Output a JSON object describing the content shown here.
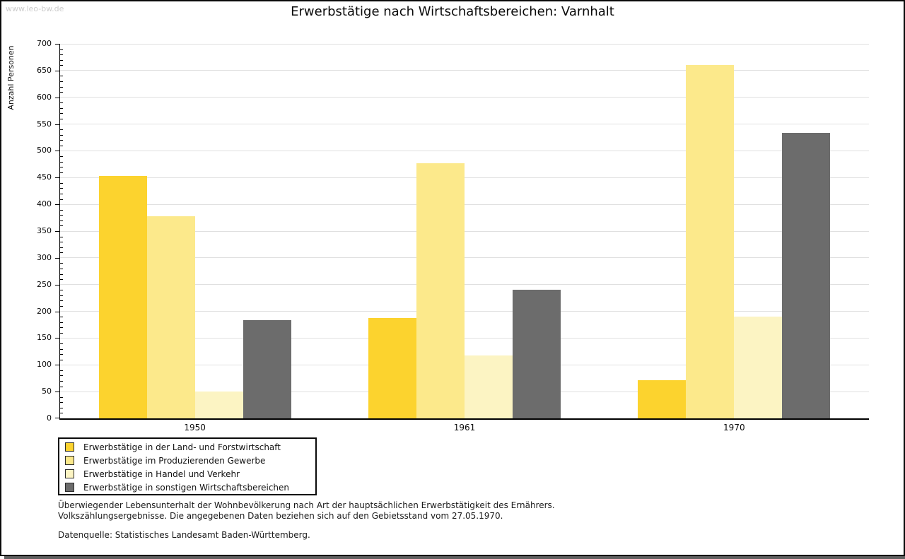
{
  "watermark": "www.leo-bw.de",
  "title": "Erwerbstätige nach Wirtschaftsbereichen: Varnhalt",
  "chart_data": {
    "type": "bar",
    "title": "Erwerbstätige nach Wirtschaftsbereichen: Varnhalt",
    "xlabel": "",
    "ylabel": "Anzahl Personen",
    "ylim": [
      0,
      700
    ],
    "ytick_step": 50,
    "minor_tick_step": 10,
    "grid": "horizontal",
    "legend_position": "bottom-left",
    "categories": [
      "1950",
      "1961",
      "1970"
    ],
    "series": [
      {
        "name": "Erwerbstätige in der Land- und Forstwirtschaft",
        "color": "#FCD32E",
        "values": [
          453,
          188,
          72
        ]
      },
      {
        "name": "Erwerbstätige im Produzierenden Gewerbe",
        "color": "#FCE98B",
        "values": [
          378,
          477,
          660
        ]
      },
      {
        "name": "Erwerbstätige in Handel und Verkehr",
        "color": "#FCF4C3",
        "values": [
          50,
          117,
          190
        ]
      },
      {
        "name": "Erwerbstätige in sonstigen Wirtschaftsbereichen",
        "color": "#6C6C6C",
        "values": [
          184,
          240,
          533
        ]
      }
    ]
  },
  "footer": {
    "line1": "Überwiegender Lebensunterhalt der Wohnbevölkerung nach Art der hauptsächlichen Erwerbstätigkeit des Ernährers.",
    "line2": "Volkszählungsergebnisse. Die angegebenen Daten beziehen sich auf den Gebietsstand vom 27.05.1970.",
    "source": "Datenquelle: Statistisches Landesamt Baden-Württemberg."
  }
}
